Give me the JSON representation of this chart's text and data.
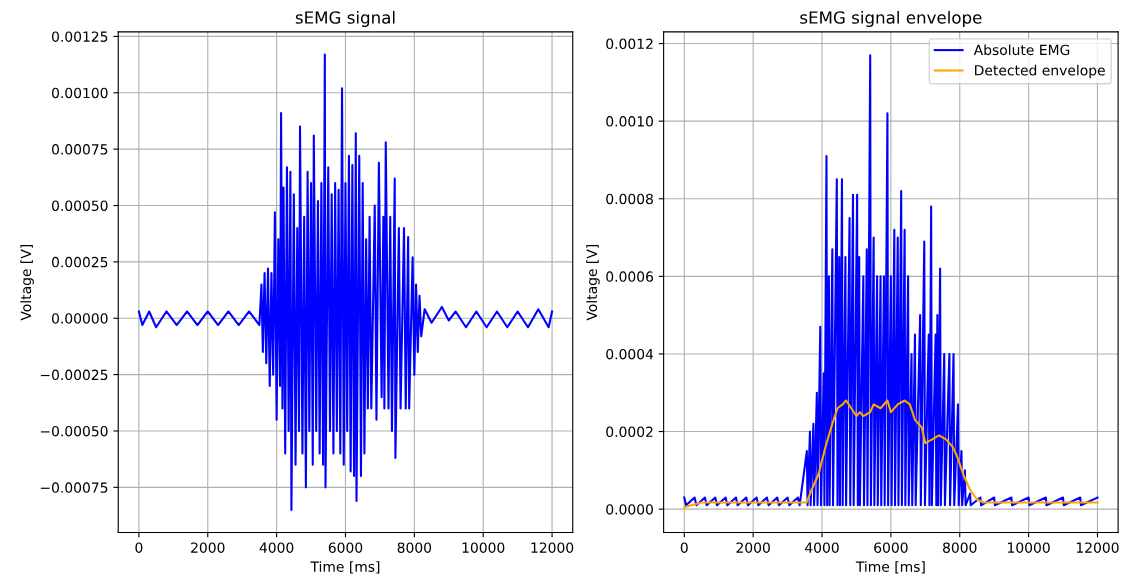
{
  "chart_data": [
    {
      "type": "line",
      "title": "sEMG signal",
      "xlabel": "Time [ms]",
      "ylabel": "Voltage [V]",
      "grid": true,
      "xlim": [
        -600,
        12600
      ],
      "xticks": [
        0,
        2000,
        4000,
        6000,
        8000,
        10000,
        12000
      ],
      "ylim": [
        -0.00095,
        0.00127
      ],
      "yticks": [
        {
          "value": -0.00075,
          "label": "−0.00075"
        },
        {
          "value": -0.0005,
          "label": "−0.00050"
        },
        {
          "value": -0.00025,
          "label": "−0.00025"
        },
        {
          "value": 0,
          "label": "0.00000"
        },
        {
          "value": 0.00025,
          "label": "0.00025"
        },
        {
          "value": 0.0005,
          "label": "0.00050"
        },
        {
          "value": 0.00075,
          "label": "0.00075"
        },
        {
          "value": 0.001,
          "label": "0.00100"
        },
        {
          "value": 0.00125,
          "label": "0.00125"
        }
      ],
      "series": [
        {
          "color": "#0000ff",
          "x": [
            0,
            100,
            300,
            500,
            800,
            1100,
            1400,
            1700,
            2000,
            2300,
            2600,
            2900,
            3200,
            3500,
            3560,
            3600,
            3650,
            3700,
            3750,
            3800,
            3850,
            3900,
            3950,
            4000,
            4050,
            4100,
            4130,
            4170,
            4200,
            4250,
            4300,
            4350,
            4400,
            4430,
            4500,
            4550,
            4600,
            4650,
            4680,
            4750,
            4800,
            4850,
            4900,
            4950,
            5000,
            5050,
            5080,
            5150,
            5200,
            5250,
            5300,
            5350,
            5400,
            5420,
            5500,
            5550,
            5600,
            5650,
            5700,
            5750,
            5800,
            5850,
            5900,
            5950,
            6000,
            6050,
            6100,
            6150,
            6200,
            6250,
            6300,
            6320,
            6400,
            6450,
            6500,
            6550,
            6600,
            6650,
            6700,
            6750,
            6850,
            6900,
            6970,
            7050,
            7100,
            7130,
            7170,
            7250,
            7300,
            7350,
            7430,
            7450,
            7550,
            7600,
            7700,
            7750,
            7820,
            7850,
            7950,
            8000,
            8050,
            8100,
            8150,
            8200,
            8300,
            8500,
            8800,
            9000,
            9200,
            9500,
            9800,
            10100,
            10400,
            10700,
            11000,
            11300,
            11600,
            11900,
            12000
          ],
          "values": [
            3e-05,
            -3e-05,
            3e-05,
            -4e-05,
            3e-05,
            -3e-05,
            3e-05,
            -3e-05,
            3e-05,
            -3e-05,
            3e-05,
            -3e-05,
            3e-05,
            -3e-05,
            0.00015,
            -0.00015,
            0.0002,
            -0.0002,
            0.00022,
            -0.0003,
            0.0002,
            -0.00025,
            0.00047,
            -0.00045,
            0.00035,
            -0.0003,
            0.00091,
            -0.0004,
            0.00058,
            -0.0006,
            0.00067,
            -0.0005,
            0.00065,
            -0.00085,
            0.00055,
            -0.00065,
            0.0004,
            -0.0005,
            0.00085,
            -0.0006,
            0.00045,
            -0.00075,
            0.00065,
            -0.0005,
            0.0006,
            -0.00065,
            0.00081,
            -0.0005,
            0.00052,
            -0.0006,
            0.0006,
            -0.00065,
            0.00117,
            -0.00075,
            0.00067,
            -0.0005,
            0.00055,
            -0.0006,
            0.0006,
            -0.0005,
            0.00057,
            -0.0006,
            0.00102,
            -0.00065,
            0.0006,
            -0.0005,
            0.00072,
            -0.00068,
            0.00068,
            -0.0007,
            0.00082,
            -0.00081,
            0.00072,
            -0.0007,
            0.0006,
            -0.0006,
            0.00035,
            -0.0004,
            0.00045,
            -0.0004,
            0.0005,
            -0.00045,
            0.00069,
            -0.00035,
            0.00045,
            -0.0004,
            0.00078,
            -0.0004,
            0.00045,
            -0.0005,
            0.00062,
            -0.00062,
            0.0004,
            -0.0004,
            0.0004,
            -0.0004,
            0.00036,
            -0.0004,
            0.00027,
            -0.00025,
            0.00015,
            -0.00015,
            0.0001,
            -8e-05,
            4e-05,
            -2e-05,
            5e-05,
            -1e-05,
            3e-05,
            -4e-05,
            3e-05,
            -4e-05,
            3e-05,
            -4e-05,
            3e-05,
            -4e-05,
            4e-05,
            -4e-05,
            3e-05
          ]
        }
      ]
    },
    {
      "type": "line",
      "title": "sEMG signal envelope",
      "xlabel": "Time [ms]",
      "ylabel": "Voltage [V]",
      "grid": true,
      "legend": "upper right",
      "xlim": [
        -600,
        12600
      ],
      "xticks": [
        0,
        2000,
        4000,
        6000,
        8000,
        10000,
        12000
      ],
      "ylim": [
        -6e-05,
        0.00123
      ],
      "yticks": [
        {
          "value": 0,
          "label": "0.0000"
        },
        {
          "value": 0.0002,
          "label": "0.0002"
        },
        {
          "value": 0.0004,
          "label": "0.0004"
        },
        {
          "value": 0.0006,
          "label": "0.0006"
        },
        {
          "value": 0.0008,
          "label": "0.0008"
        },
        {
          "value": 0.001,
          "label": "0.0010"
        },
        {
          "value": 0.0012,
          "label": "0.0012"
        }
      ],
      "series": [
        {
          "name": "Absolute EMG",
          "color": "#0000ff",
          "x": [
            0,
            50,
            300,
            350,
            600,
            650,
            900,
            950,
            1200,
            1250,
            1500,
            1550,
            1800,
            1850,
            2100,
            2150,
            2400,
            2450,
            2700,
            2750,
            3000,
            3050,
            3300,
            3350,
            3560,
            3580,
            3650,
            3670,
            3750,
            3770,
            3850,
            3870,
            3950,
            3970,
            4050,
            4070,
            4130,
            4150,
            4200,
            4220,
            4300,
            4320,
            4430,
            4450,
            4500,
            4520,
            4580,
            4600,
            4680,
            4700,
            4800,
            4820,
            4900,
            4920,
            5020,
            5040,
            5080,
            5100,
            5200,
            5220,
            5300,
            5320,
            5400,
            5420,
            5500,
            5520,
            5600,
            5620,
            5700,
            5720,
            5800,
            5820,
            5900,
            5920,
            6000,
            6020,
            6100,
            6120,
            6200,
            6220,
            6300,
            6320,
            6400,
            6420,
            6500,
            6520,
            6600,
            6620,
            6700,
            6720,
            6850,
            6870,
            6970,
            6990,
            7100,
            7120,
            7170,
            7190,
            7300,
            7320,
            7350,
            7370,
            7430,
            7450,
            7550,
            7570,
            7700,
            7720,
            7820,
            7840,
            7950,
            7970,
            8050,
            8070,
            8150,
            8170,
            8300,
            8320,
            8600,
            8620,
            9000,
            9020,
            9500,
            9520,
            10000,
            10020,
            10500,
            10520,
            11000,
            11020,
            11500,
            11520,
            12000
          ],
          "values": [
            3e-05,
            1e-05,
            3e-05,
            1e-05,
            3e-05,
            1e-05,
            3e-05,
            1e-05,
            3e-05,
            1e-05,
            3e-05,
            1e-05,
            3e-05,
            1e-05,
            3e-05,
            1e-05,
            3e-05,
            1e-05,
            3e-05,
            1e-05,
            3e-05,
            1e-05,
            3e-05,
            1e-05,
            0.00015,
            1e-05,
            0.0002,
            1e-05,
            0.00022,
            1e-05,
            0.0003,
            1e-05,
            0.00047,
            1e-05,
            0.00035,
            1e-05,
            0.00091,
            1e-05,
            0.0006,
            1e-05,
            0.00067,
            1e-05,
            0.00085,
            1e-05,
            0.00065,
            1e-05,
            0.00085,
            1e-05,
            0.00065,
            1e-05,
            0.00075,
            1e-05,
            0.00081,
            1e-05,
            0.00081,
            1e-05,
            0.00065,
            1e-05,
            0.0006,
            1e-05,
            0.00067,
            1e-05,
            0.00117,
            1e-05,
            0.0007,
            1e-05,
            0.0006,
            1e-05,
            0.0006,
            1e-05,
            0.0006,
            1e-05,
            0.00102,
            1e-05,
            0.0006,
            1e-05,
            0.00072,
            1e-05,
            0.0007,
            1e-05,
            0.00082,
            1e-05,
            0.00072,
            1e-05,
            0.0006,
            1e-05,
            0.0004,
            1e-05,
            0.00045,
            1e-05,
            0.0005,
            1e-05,
            0.00069,
            1e-05,
            0.00045,
            1e-05,
            0.00078,
            1e-05,
            0.00045,
            1e-05,
            0.0005,
            1e-05,
            0.00062,
            1e-05,
            0.0004,
            1e-05,
            0.0004,
            1e-05,
            0.0004,
            1e-05,
            0.00027,
            1e-05,
            0.00015,
            1e-05,
            0.0001,
            1e-05,
            4e-05,
            1e-05,
            3e-05,
            1e-05,
            3e-05,
            1e-05,
            3e-05,
            1e-05,
            3e-05,
            1e-05,
            3e-05,
            1e-05,
            3e-05,
            1e-05,
            3e-05,
            1e-05,
            3e-05
          ]
        },
        {
          "name": "Detected envelope",
          "color": "#ffa500",
          "x": [
            0,
            200,
            500,
            3550,
            3700,
            3900,
            4100,
            4300,
            4450,
            4600,
            4700,
            4850,
            5000,
            5100,
            5200,
            5400,
            5500,
            5700,
            5900,
            6000,
            6200,
            6400,
            6550,
            6700,
            6900,
            7000,
            7200,
            7400,
            7600,
            7800,
            7950,
            8100,
            8300,
            8500,
            8700,
            12000
          ],
          "values": [
            5e-06,
            1e-05,
            1.7e-05,
            1.7e-05,
            5e-05,
            9e-05,
            0.00016,
            0.00022,
            0.00026,
            0.00027,
            0.00028,
            0.00026,
            0.00024,
            0.00025,
            0.00024,
            0.00025,
            0.00027,
            0.00026,
            0.00028,
            0.00025,
            0.00027,
            0.00028,
            0.00027,
            0.00023,
            0.00021,
            0.00017,
            0.00018,
            0.00019,
            0.00018,
            0.00016,
            0.00013,
            9e-05,
            5e-05,
            2.5e-05,
            1.7e-05,
            1.7e-05
          ]
        }
      ]
    }
  ]
}
